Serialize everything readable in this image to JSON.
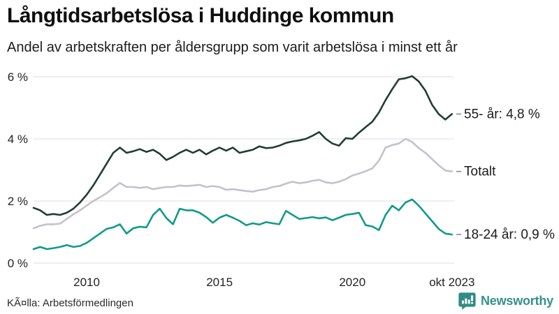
{
  "header": {
    "title": "Långtidsarbetslösa i Huddinge kommun",
    "subtitle": "Andel av arbetskraften per åldersgrupp som varit arbetslösa i minst ett år"
  },
  "footer": {
    "source": "KÃ¤lla: Arbetsförmedlingen",
    "brand": "Newsworthy"
  },
  "colors": {
    "series_55": "#1f3d34",
    "series_totalt": "#c4c1ce",
    "series_18_24": "#109a8a",
    "grid": "#e3e3e7",
    "connector": "#8a8a90",
    "brand_teal": "#2f8c86",
    "text": "#1b1b1b"
  },
  "chart_data": {
    "type": "line",
    "title": "Långtidsarbetslösa i Huddinge kommun",
    "subtitle": "Andel av arbetskraften per åldersgrupp som varit arbetslösa i minst ett år",
    "x_unit": "decimal-year (quarterly samples, Jan 2008 – Oct 2023)",
    "xlim": [
      2008.0,
      2023.8333
    ],
    "ylim": [
      0,
      6
    ],
    "grid": "horizontal",
    "legend_position": "right-annotations",
    "x_ticks": [
      {
        "value": 2010.0,
        "label": "2010"
      },
      {
        "value": 2015.0,
        "label": "2015"
      },
      {
        "value": 2020.0,
        "label": "2020"
      },
      {
        "value": 2023.75,
        "label": "okt 2023"
      }
    ],
    "y_ticks": [
      {
        "value": 0,
        "label": "0 %"
      },
      {
        "value": 2,
        "label": "2 %"
      },
      {
        "value": 4,
        "label": "4 %"
      },
      {
        "value": 6,
        "label": "6 %"
      }
    ],
    "x": [
      2008.0,
      2008.25,
      2008.5,
      2008.75,
      2009.0,
      2009.25,
      2009.5,
      2009.75,
      2010.0,
      2010.25,
      2010.5,
      2010.75,
      2011.0,
      2011.25,
      2011.5,
      2011.75,
      2012.0,
      2012.25,
      2012.5,
      2012.75,
      2013.0,
      2013.25,
      2013.5,
      2013.75,
      2014.0,
      2014.25,
      2014.5,
      2014.75,
      2015.0,
      2015.25,
      2015.5,
      2015.75,
      2016.0,
      2016.25,
      2016.5,
      2016.75,
      2017.0,
      2017.25,
      2017.5,
      2017.75,
      2018.0,
      2018.25,
      2018.5,
      2018.75,
      2019.0,
      2019.25,
      2019.5,
      2019.75,
      2020.0,
      2020.25,
      2020.5,
      2020.75,
      2021.0,
      2021.25,
      2021.5,
      2021.75,
      2022.0,
      2022.25,
      2022.5,
      2022.75,
      2023.0,
      2023.25,
      2023.5,
      2023.75
    ],
    "series": [
      {
        "key": "55-ar",
        "name": "55- år",
        "label": "55- år: 4,8 %",
        "end_value_label": "4,8 %",
        "color": "#1f3d34",
        "values": [
          1.78,
          1.7,
          1.55,
          1.58,
          1.55,
          1.62,
          1.75,
          1.95,
          2.2,
          2.5,
          2.85,
          3.2,
          3.55,
          3.72,
          3.55,
          3.6,
          3.67,
          3.58,
          3.65,
          3.52,
          3.32,
          3.42,
          3.55,
          3.65,
          3.55,
          3.65,
          3.5,
          3.62,
          3.72,
          3.62,
          3.72,
          3.55,
          3.6,
          3.65,
          3.76,
          3.7,
          3.72,
          3.78,
          3.87,
          3.92,
          3.95,
          4.0,
          4.1,
          4.22,
          4.0,
          3.85,
          3.78,
          4.02,
          4.0,
          4.2,
          4.38,
          4.55,
          4.85,
          5.25,
          5.6,
          5.92,
          5.95,
          6.02,
          5.85,
          5.55,
          5.1,
          4.8,
          4.62,
          4.8
        ]
      },
      {
        "key": "totalt",
        "name": "Totalt",
        "label": "Totalt",
        "end_value_label": "",
        "color": "#c4c1ce",
        "values": [
          1.12,
          1.2,
          1.25,
          1.25,
          1.27,
          1.42,
          1.57,
          1.7,
          1.85,
          2.0,
          2.12,
          2.25,
          2.42,
          2.58,
          2.45,
          2.45,
          2.42,
          2.45,
          2.38,
          2.42,
          2.45,
          2.45,
          2.5,
          2.48,
          2.5,
          2.52,
          2.45,
          2.48,
          2.45,
          2.36,
          2.38,
          2.35,
          2.32,
          2.3,
          2.35,
          2.38,
          2.45,
          2.48,
          2.56,
          2.62,
          2.57,
          2.6,
          2.65,
          2.68,
          2.6,
          2.57,
          2.62,
          2.7,
          2.82,
          2.88,
          2.96,
          3.05,
          3.3,
          3.72,
          3.8,
          3.85,
          4.0,
          3.9,
          3.7,
          3.55,
          3.35,
          3.15,
          2.98,
          2.95
        ]
      },
      {
        "key": "18-24-ar",
        "name": "18-24 år",
        "label": "18-24 år: 0,9 %",
        "end_value_label": "0,9 %",
        "color": "#109a8a",
        "values": [
          0.45,
          0.52,
          0.45,
          0.48,
          0.52,
          0.58,
          0.52,
          0.55,
          0.65,
          0.8,
          0.95,
          1.1,
          1.15,
          1.25,
          0.95,
          1.12,
          1.17,
          1.15,
          1.55,
          1.75,
          1.45,
          1.25,
          1.75,
          1.7,
          1.7,
          1.62,
          1.48,
          1.3,
          1.46,
          1.55,
          1.46,
          1.36,
          1.22,
          1.28,
          1.24,
          1.32,
          1.28,
          1.25,
          1.68,
          1.55,
          1.42,
          1.45,
          1.48,
          1.44,
          1.47,
          1.38,
          1.46,
          1.55,
          1.58,
          1.62,
          1.22,
          1.18,
          1.06,
          1.55,
          1.85,
          1.7,
          1.95,
          2.05,
          1.85,
          1.6,
          1.35,
          1.1,
          0.95,
          0.92
        ]
      }
    ]
  }
}
